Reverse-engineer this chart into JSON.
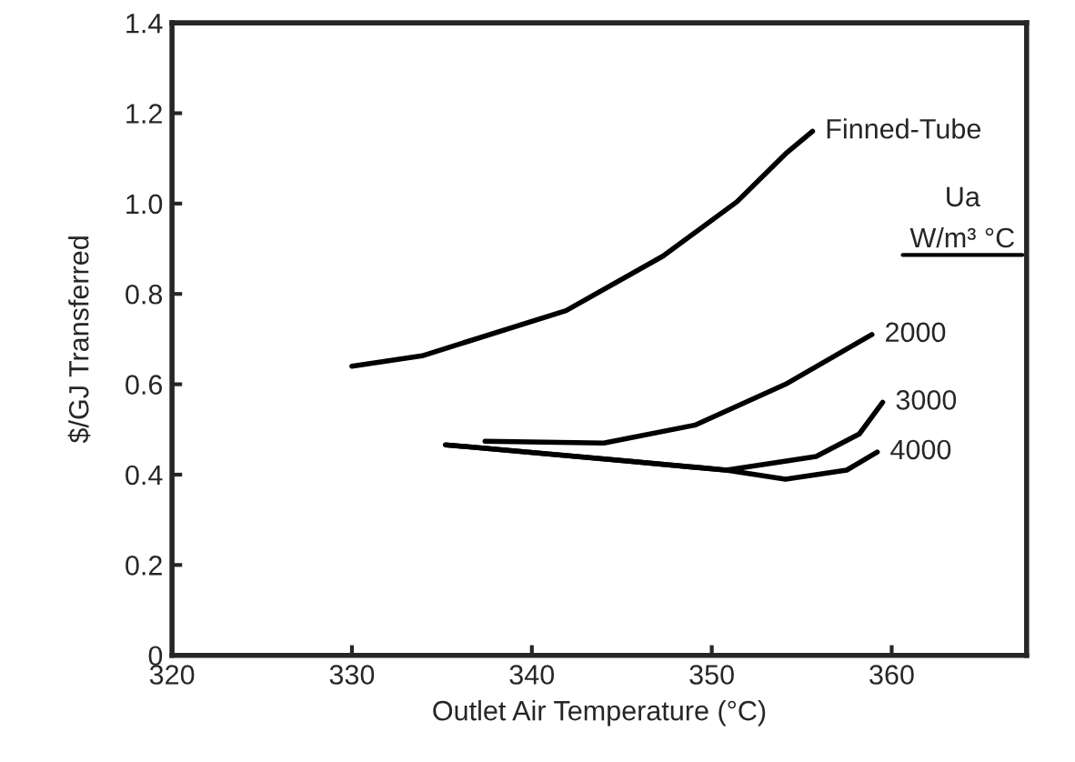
{
  "chart_data": {
    "type": "line",
    "xlabel": "Outlet Air Temperature (°C)",
    "ylabel": "$/GJ Transferred",
    "xlim": [
      320,
      367.5
    ],
    "ylim": [
      0,
      1.4
    ],
    "xticks": [
      320,
      330,
      340,
      350,
      360
    ],
    "yticks": [
      0,
      0.2,
      0.4,
      0.6,
      0.8,
      {
        "value": 1.0,
        "label": "1.0"
      },
      1.2,
      1.4
    ],
    "grid": false,
    "legend": false,
    "marker": "none",
    "line_style": "solid",
    "annotations": [
      "Ua",
      "W/m³ °C"
    ],
    "series": [
      {
        "name": "Finned-Tube",
        "color": "#000000",
        "x": [
          330,
          333.9,
          341.9,
          347.3,
          351.4,
          354.1,
          355.6
        ],
        "values": [
          0.64,
          0.663,
          0.763,
          0.884,
          1.004,
          1.11,
          1.16
        ]
      },
      {
        "name": "2000",
        "color": "#000000",
        "x": [
          337.4,
          344.0,
          349.1,
          354.1,
          358.9
        ],
        "values": [
          0.474,
          0.47,
          0.51,
          0.6,
          0.71
        ]
      },
      {
        "name": "3000",
        "color": "#000000",
        "x": [
          335.2,
          345.3,
          350.8,
          355.8,
          358.2,
          359.5
        ],
        "values": [
          0.466,
          0.43,
          0.41,
          0.44,
          0.49,
          0.56
        ]
      },
      {
        "name": "4000",
        "color": "#000000",
        "x": [
          335.2,
          345.3,
          350.8,
          354.1,
          357.5,
          359.2
        ],
        "values": [
          0.466,
          0.43,
          0.41,
          0.39,
          0.41,
          0.45
        ]
      }
    ]
  }
}
